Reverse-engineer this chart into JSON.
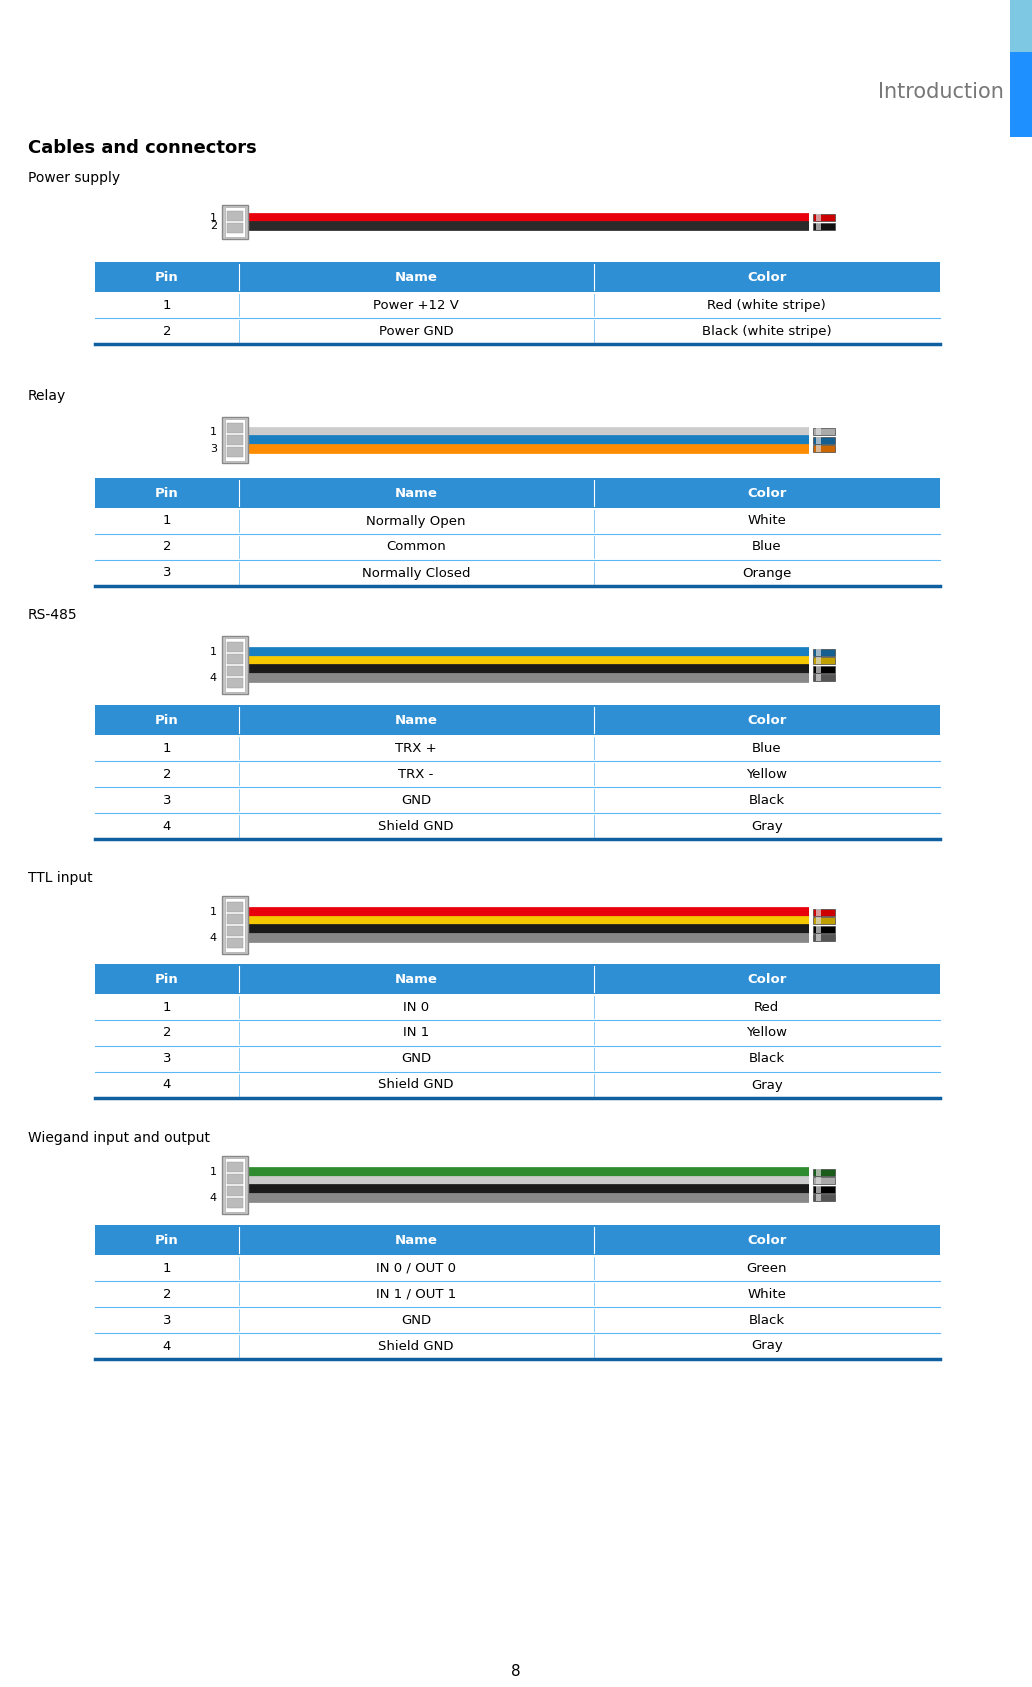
{
  "page_number": "8",
  "header_text": "Introduction",
  "header_bar_light": "#7EC8E3",
  "header_bar_dark": "#1E90FF",
  "main_title": "Cables and connectors",
  "table_header_bg": "#2E8FD4",
  "table_header_color": "#FFFFFF",
  "table_row_divider": "#5BB8F5",
  "table_border_bottom": "#1060A0",
  "bg_color": "#FFFFFF",
  "sections": [
    {
      "label": "Power supply",
      "cables": [
        {
          "color": "#E8000D",
          "tip_color": "#CC0000"
        },
        {
          "color": "#2A2A2A",
          "tip_color": "#111111"
        }
      ],
      "num_pins": 2,
      "headers": [
        "Pin",
        "Name",
        "Color"
      ],
      "rows": [
        [
          "1",
          "Power +12 V",
          "Red (white stripe)"
        ],
        [
          "2",
          "Power GND",
          "Black (white stripe)"
        ]
      ]
    },
    {
      "label": "Relay",
      "cables": [
        {
          "color": "#CCCCCC",
          "tip_color": "#AAAAAA"
        },
        {
          "color": "#1A7FC1",
          "tip_color": "#155E90"
        },
        {
          "color": "#FF8C00",
          "tip_color": "#CC6600"
        }
      ],
      "num_pins": 3,
      "headers": [
        "Pin",
        "Name",
        "Color"
      ],
      "rows": [
        [
          "1",
          "Normally Open",
          "White"
        ],
        [
          "2",
          "Common",
          "Blue"
        ],
        [
          "3",
          "Normally Closed",
          "Orange"
        ]
      ]
    },
    {
      "label": "RS-485",
      "cables": [
        {
          "color": "#1A7FC1",
          "tip_color": "#155E90"
        },
        {
          "color": "#F5C800",
          "tip_color": "#C0A000"
        },
        {
          "color": "#1A1A1A",
          "tip_color": "#000000"
        },
        {
          "color": "#888888",
          "tip_color": "#555555"
        }
      ],
      "num_pins": 4,
      "headers": [
        "Pin",
        "Name",
        "Color"
      ],
      "rows": [
        [
          "1",
          "TRX +",
          "Blue"
        ],
        [
          "2",
          "TRX -",
          "Yellow"
        ],
        [
          "3",
          "GND",
          "Black"
        ],
        [
          "4",
          "Shield GND",
          "Gray"
        ]
      ]
    },
    {
      "label": "TTL input",
      "cables": [
        {
          "color": "#E8000D",
          "tip_color": "#CC0000"
        },
        {
          "color": "#F5C800",
          "tip_color": "#C0A000"
        },
        {
          "color": "#1A1A1A",
          "tip_color": "#000000"
        },
        {
          "color": "#888888",
          "tip_color": "#555555"
        }
      ],
      "num_pins": 4,
      "headers": [
        "Pin",
        "Name",
        "Color"
      ],
      "rows": [
        [
          "1",
          "IN 0",
          "Red"
        ],
        [
          "2",
          "IN 1",
          "Yellow"
        ],
        [
          "3",
          "GND",
          "Black"
        ],
        [
          "4",
          "Shield GND",
          "Gray"
        ]
      ]
    },
    {
      "label": "Wiegand input and output",
      "cables": [
        {
          "color": "#2E8B2E",
          "tip_color": "#1A5C1A"
        },
        {
          "color": "#CCCCCC",
          "tip_color": "#AAAAAA"
        },
        {
          "color": "#1A1A1A",
          "tip_color": "#000000"
        },
        {
          "color": "#888888",
          "tip_color": "#555555"
        }
      ],
      "num_pins": 4,
      "headers": [
        "Pin",
        "Name",
        "Color"
      ],
      "rows": [
        [
          "1",
          "IN 0 / OUT 0",
          "Green"
        ],
        [
          "2",
          "IN 1 / OUT 1",
          "White"
        ],
        [
          "3",
          "GND",
          "Black"
        ],
        [
          "4",
          "Shield GND",
          "Gray"
        ]
      ]
    }
  ]
}
